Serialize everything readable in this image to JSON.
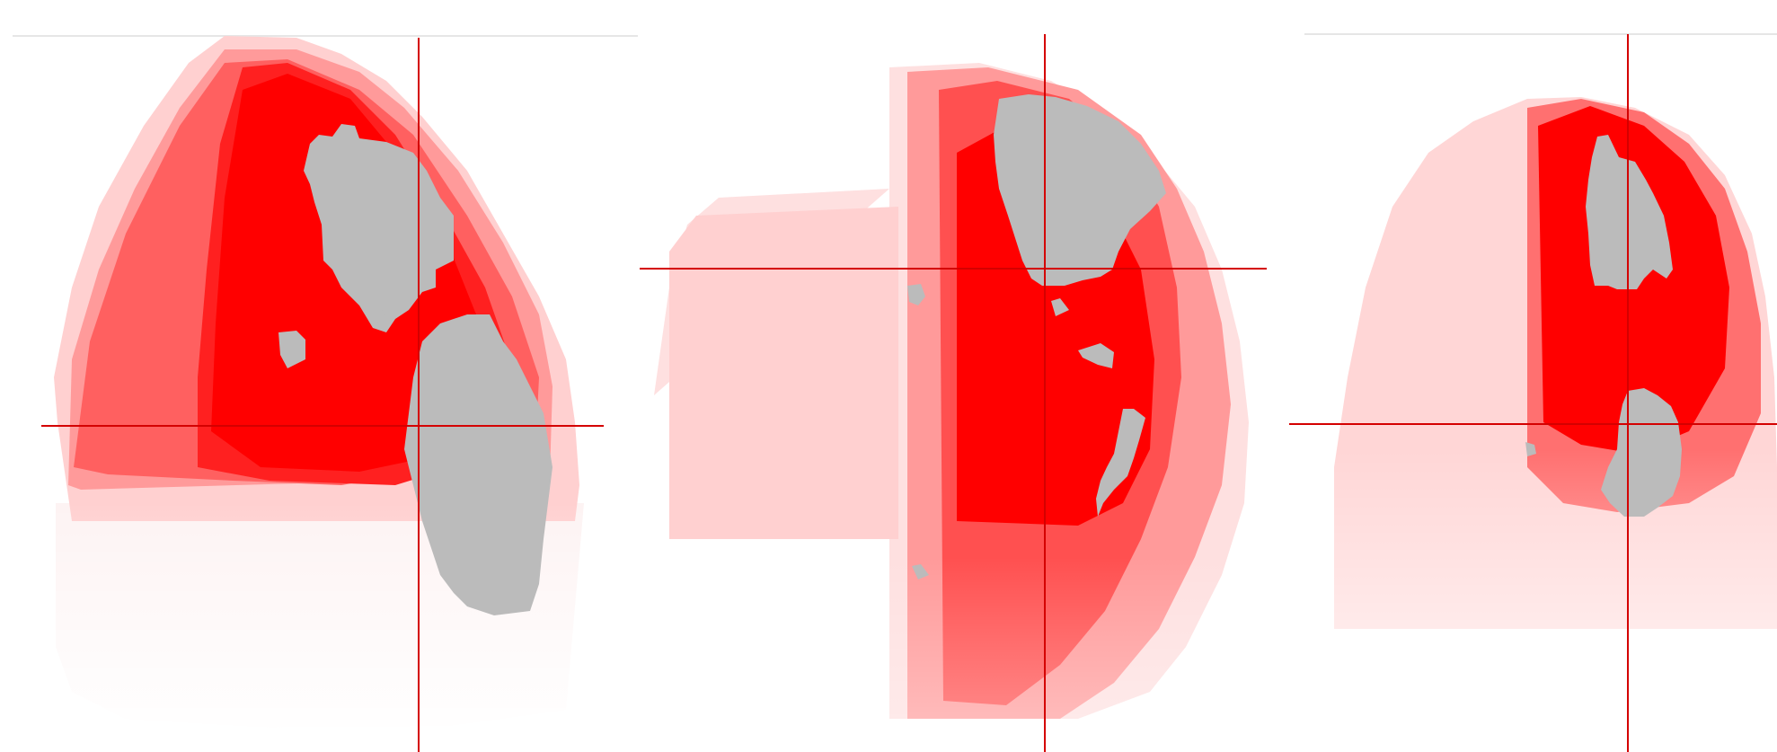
{
  "viewer": {
    "panels": [
      {
        "name": "panel-left",
        "overlay_color": "#ff0000",
        "anatomy_color": "#bbbbbb",
        "crosshair_color": "#d40000"
      },
      {
        "name": "panel-center",
        "overlay_color": "#ff0000",
        "anatomy_color": "#bbbbbb",
        "crosshair_color": "#d40000"
      },
      {
        "name": "panel-right",
        "overlay_color": "#ff0000",
        "anatomy_color": "#bbbbbb",
        "crosshair_color": "#d40000"
      }
    ]
  }
}
